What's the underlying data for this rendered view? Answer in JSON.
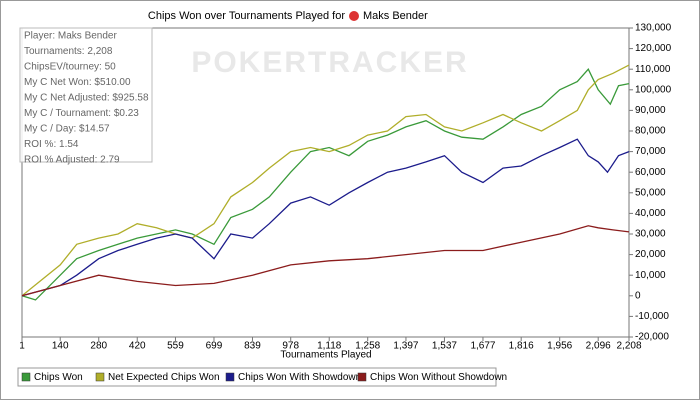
{
  "chart_data": {
    "type": "line",
    "title": "Chips Won over Tournaments Played for",
    "player": "Maks Bender",
    "watermark": "POKERTRACKER",
    "x_label": "Tournaments Played",
    "stats": [
      "Player: Maks Bender",
      "Tournaments: 2,208",
      "ChipsEV/tourney: 50",
      "My C Net Won: $510.00",
      "My C Net Adjusted: $925.58",
      "My C / Tournament: $0.23",
      "My C / Day: $14.57",
      "ROI %: 1.54",
      "ROI % Adjusted: 2.79"
    ],
    "xlim": [
      1,
      2208
    ],
    "xticks": [
      1,
      140,
      280,
      420,
      559,
      699,
      839,
      978,
      {
        "value": 1118,
        "label": "1,118"
      },
      {
        "value": 1258,
        "label": "1,258"
      },
      {
        "value": 1397,
        "label": "1,397"
      },
      {
        "value": 1537,
        "label": "1,537"
      },
      {
        "value": 1677,
        "label": "1,677"
      },
      {
        "value": 1816,
        "label": "1,816"
      },
      {
        "value": 1956,
        "label": "1,956"
      },
      {
        "value": 2096,
        "label": "2,096"
      },
      {
        "value": 2208,
        "label": "2,208"
      }
    ],
    "ylim": [
      -20000,
      130000
    ],
    "yticks": [
      {
        "value": -20000,
        "label": "-20,000"
      },
      {
        "value": -10000,
        "label": "-10,000"
      },
      0,
      {
        "value": 10000,
        "label": "10,000"
      },
      {
        "value": 20000,
        "label": "20,000"
      },
      {
        "value": 30000,
        "label": "30,000"
      },
      {
        "value": 40000,
        "label": "40,000"
      },
      {
        "value": 50000,
        "label": "50,000"
      },
      {
        "value": 60000,
        "label": "60,000"
      },
      {
        "value": 70000,
        "label": "70,000"
      },
      {
        "value": 80000,
        "label": "80,000"
      },
      {
        "value": 90000,
        "label": "90,000"
      },
      {
        "value": 100000,
        "label": "100,000"
      },
      {
        "value": 110000,
        "label": "110,000"
      },
      {
        "value": 120000,
        "label": "120,000"
      },
      {
        "value": 130000,
        "label": "130,000"
      }
    ],
    "series": [
      {
        "name": "Chips Won",
        "color": "#3a9a3a",
        "x": [
          1,
          50,
          140,
          200,
          280,
          350,
          420,
          490,
          559,
          620,
          699,
          760,
          839,
          900,
          978,
          1050,
          1118,
          1190,
          1258,
          1330,
          1397,
          1470,
          1537,
          1600,
          1677,
          1750,
          1816,
          1890,
          1956,
          2020,
          2060,
          2096,
          2140,
          2170,
          2208
        ],
        "values": [
          0,
          -2000,
          10000,
          18000,
          22000,
          25000,
          28000,
          30000,
          32000,
          30000,
          25000,
          38000,
          42000,
          48000,
          60000,
          70000,
          72000,
          68000,
          75000,
          78000,
          82000,
          85000,
          80000,
          77000,
          76000,
          82000,
          88000,
          92000,
          100000,
          104000,
          110000,
          100000,
          93000,
          102000,
          103000
        ]
      },
      {
        "name": "Net Expected Chips Won",
        "color": "#b0ae2a",
        "x": [
          1,
          140,
          200,
          280,
          350,
          420,
          490,
          559,
          620,
          699,
          760,
          839,
          900,
          978,
          1050,
          1118,
          1190,
          1258,
          1330,
          1397,
          1470,
          1537,
          1600,
          1677,
          1750,
          1816,
          1890,
          1956,
          2020,
          2060,
          2096,
          2150,
          2208
        ],
        "values": [
          0,
          15000,
          25000,
          28000,
          30000,
          35000,
          33000,
          30000,
          28000,
          35000,
          48000,
          55000,
          62000,
          70000,
          72000,
          70000,
          73000,
          78000,
          80000,
          87000,
          88000,
          82000,
          80000,
          84000,
          88000,
          84000,
          80000,
          85000,
          90000,
          100000,
          105000,
          108000,
          112000
        ]
      },
      {
        "name": "Chips Won With Showdown",
        "color": "#1c1c8c",
        "x": [
          1,
          140,
          200,
          280,
          350,
          420,
          490,
          559,
          620,
          699,
          760,
          839,
          900,
          978,
          1050,
          1118,
          1190,
          1258,
          1330,
          1397,
          1470,
          1537,
          1600,
          1677,
          1750,
          1816,
          1890,
          1956,
          2020,
          2060,
          2096,
          2130,
          2170,
          2208
        ],
        "values": [
          0,
          5000,
          10000,
          18000,
          22000,
          25000,
          28000,
          30000,
          28000,
          18000,
          30000,
          28000,
          35000,
          45000,
          48000,
          44000,
          50000,
          55000,
          60000,
          62000,
          65000,
          68000,
          60000,
          55000,
          62000,
          63000,
          68000,
          72000,
          76000,
          68000,
          65000,
          60000,
          68000,
          70000
        ]
      },
      {
        "name": "Chips Won Without Showdown",
        "color": "#8b1c1c",
        "x": [
          1,
          140,
          280,
          420,
          559,
          699,
          839,
          978,
          1118,
          1258,
          1397,
          1537,
          1677,
          1816,
          1956,
          2060,
          2096,
          2150,
          2208
        ],
        "values": [
          0,
          5000,
          10000,
          7000,
          5000,
          6000,
          10000,
          15000,
          17000,
          18000,
          20000,
          22000,
          22000,
          26000,
          30000,
          34000,
          33000,
          32000,
          31000
        ]
      }
    ]
  }
}
